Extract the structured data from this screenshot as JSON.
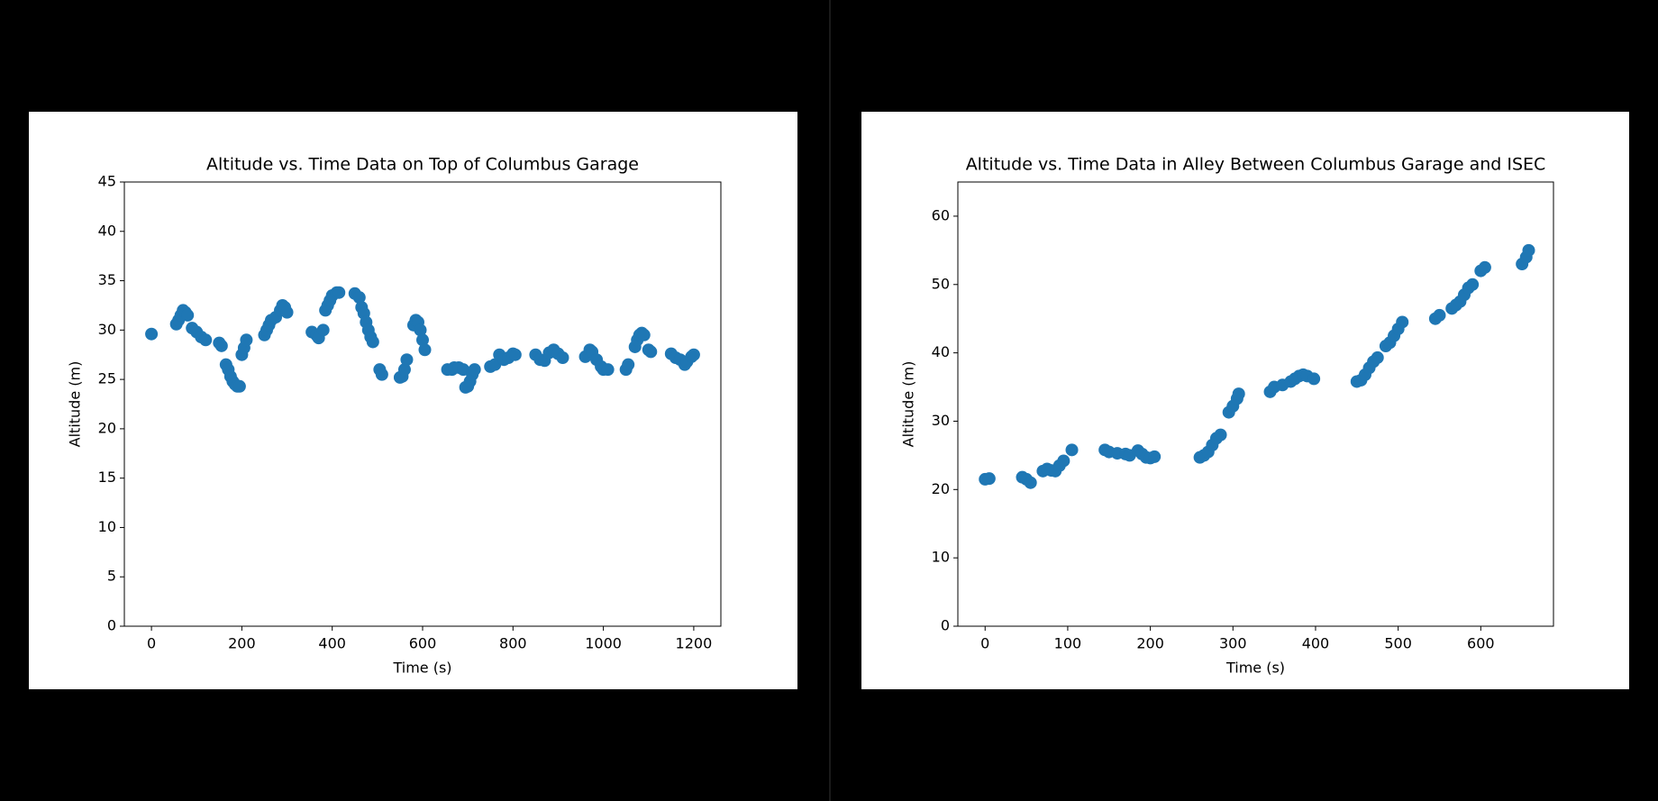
{
  "chart_data": [
    {
      "type": "scatter",
      "title": "Altitude vs. Time Data on Top of Columbus Garage",
      "xlabel": "Time (s)",
      "ylabel": "Altitude (m)",
      "color": "#1f77b4",
      "xlim": [
        -60,
        1260
      ],
      "xticks": [
        0,
        200,
        400,
        600,
        800,
        1000,
        1200
      ],
      "ylim": [
        0,
        45
      ],
      "yticks": [
        0,
        5,
        10,
        15,
        20,
        25,
        30,
        35,
        40,
        45
      ],
      "x": [
        0,
        55,
        60,
        65,
        70,
        75,
        80,
        90,
        100,
        110,
        120,
        150,
        155,
        165,
        170,
        175,
        180,
        185,
        190,
        195,
        200,
        205,
        210,
        250,
        255,
        260,
        265,
        275,
        285,
        290,
        295,
        300,
        355,
        365,
        370,
        380,
        385,
        390,
        395,
        400,
        410,
        415,
        450,
        460,
        465,
        470,
        475,
        480,
        485,
        490,
        505,
        510,
        550,
        555,
        560,
        565,
        580,
        585,
        590,
        595,
        600,
        605,
        655,
        665,
        670,
        680,
        690,
        695,
        700,
        705,
        710,
        715,
        750,
        760,
        770,
        780,
        790,
        800,
        805,
        850,
        860,
        870,
        880,
        890,
        900,
        910,
        960,
        970,
        975,
        985,
        995,
        1000,
        1010,
        1050,
        1055,
        1070,
        1075,
        1080,
        1085,
        1090,
        1100,
        1105,
        1150,
        1160,
        1170,
        1180,
        1185,
        1195,
        1200
      ],
      "values": [
        29.6,
        30.6,
        31,
        31.5,
        32,
        31.8,
        31.5,
        30.2,
        29.8,
        29.3,
        29,
        28.7,
        28.4,
        26.5,
        26,
        25.3,
        24.8,
        24.5,
        24.3,
        24.3,
        27.5,
        28.2,
        29,
        29.5,
        30,
        30.5,
        31,
        31.3,
        32,
        32.5,
        32.3,
        31.8,
        29.8,
        29.5,
        29.2,
        30,
        32,
        32.5,
        33,
        33.5,
        33.8,
        33.8,
        33.7,
        33.3,
        32.3,
        31.7,
        30.8,
        30,
        29.3,
        28.8,
        26,
        25.5,
        25.2,
        25.3,
        26,
        27,
        30.5,
        31,
        30.8,
        30,
        29,
        28,
        26,
        26,
        26.2,
        26.2,
        26,
        24.2,
        24.3,
        24.8,
        25.5,
        26,
        26.3,
        26.5,
        27.5,
        27,
        27.2,
        27.6,
        27.5,
        27.5,
        27,
        26.9,
        27.7,
        28,
        27.6,
        27.2,
        27.3,
        28,
        27.8,
        27,
        26.3,
        26,
        26,
        26,
        26.5,
        28.3,
        29,
        29.5,
        29.7,
        29.5,
        28,
        27.8,
        27.6,
        27.2,
        27,
        26.5,
        26.8,
        27.3,
        27.5
      ]
    },
    {
      "type": "scatter",
      "title": "Altitude vs. Time Data in Alley Between Columbus Garage and ISEC",
      "xlabel": "Time (s)",
      "ylabel": "Altitude (m)",
      "color": "#1f77b4",
      "xlim": [
        -33,
        688
      ],
      "xticks": [
        0,
        100,
        200,
        300,
        400,
        500,
        600
      ],
      "ylim": [
        0,
        65
      ],
      "yticks": [
        0,
        10,
        20,
        30,
        40,
        50,
        60
      ],
      "x": [
        0,
        5,
        45,
        50,
        55,
        70,
        75,
        80,
        85,
        90,
        95,
        105,
        145,
        150,
        160,
        170,
        175,
        185,
        190,
        195,
        200,
        205,
        260,
        265,
        270,
        275,
        280,
        285,
        295,
        300,
        305,
        307,
        345,
        350,
        360,
        370,
        375,
        380,
        385,
        390,
        398,
        450,
        455,
        460,
        465,
        470,
        475,
        485,
        490,
        495,
        500,
        505,
        545,
        550,
        565,
        570,
        575,
        580,
        585,
        590,
        600,
        605,
        650,
        655,
        658
      ],
      "values": [
        21.5,
        21.6,
        21.8,
        21.5,
        21,
        22.7,
        23,
        22.8,
        22.7,
        23.5,
        24.2,
        25.8,
        25.8,
        25.5,
        25.3,
        25.2,
        25,
        25.7,
        25.2,
        24.7,
        24.6,
        24.8,
        24.7,
        25,
        25.5,
        26.5,
        27.5,
        28,
        31.3,
        32.2,
        33.3,
        34,
        34.3,
        35,
        35.3,
        35.8,
        36.2,
        36.6,
        36.8,
        36.6,
        36.2,
        35.8,
        36,
        36.8,
        37.8,
        38.7,
        39.3,
        41,
        41.5,
        42.5,
        43.5,
        44.5,
        45,
        45.5,
        46.5,
        47,
        47.5,
        48.5,
        49.5,
        50,
        52,
        52.5,
        53,
        54,
        55
      ]
    }
  ]
}
